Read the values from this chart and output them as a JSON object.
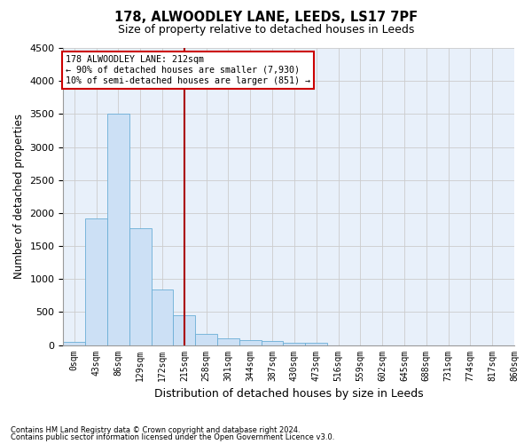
{
  "title": "178, ALWOODLEY LANE, LEEDS, LS17 7PF",
  "subtitle": "Size of property relative to detached houses in Leeds",
  "xlabel": "Distribution of detached houses by size in Leeds",
  "ylabel": "Number of detached properties",
  "bar_color": "#cce0f5",
  "bar_edge_color": "#6aaed6",
  "grid_color": "#cccccc",
  "background_color": "#e8f0fa",
  "annotation_box_color": "#cc0000",
  "vline_color": "#aa0000",
  "footnote1": "Contains HM Land Registry data © Crown copyright and database right 2024.",
  "footnote2": "Contains public sector information licensed under the Open Government Licence v3.0.",
  "annotation_line1": "178 ALWOODLEY LANE: 212sqm",
  "annotation_line2": "← 90% of detached houses are smaller (7,930)",
  "annotation_line3": "10% of semi-detached houses are larger (851) →",
  "vline_x": 5,
  "bin_labels": [
    "0sqm",
    "43sqm",
    "86sqm",
    "129sqm",
    "172sqm",
    "215sqm",
    "258sqm",
    "301sqm",
    "344sqm",
    "387sqm",
    "430sqm",
    "473sqm",
    "516sqm",
    "559sqm",
    "602sqm",
    "645sqm",
    "688sqm",
    "731sqm",
    "774sqm",
    "817sqm",
    "860sqm"
  ],
  "bar_values": [
    50,
    1920,
    3500,
    1775,
    840,
    455,
    165,
    100,
    75,
    60,
    40,
    35,
    0,
    0,
    0,
    0,
    0,
    0,
    0,
    0
  ],
  "ylim": [
    0,
    4500
  ],
  "yticks": [
    0,
    500,
    1000,
    1500,
    2000,
    2500,
    3000,
    3500,
    4000,
    4500
  ],
  "figsize": [
    6.0,
    5.0
  ],
  "dpi": 100
}
